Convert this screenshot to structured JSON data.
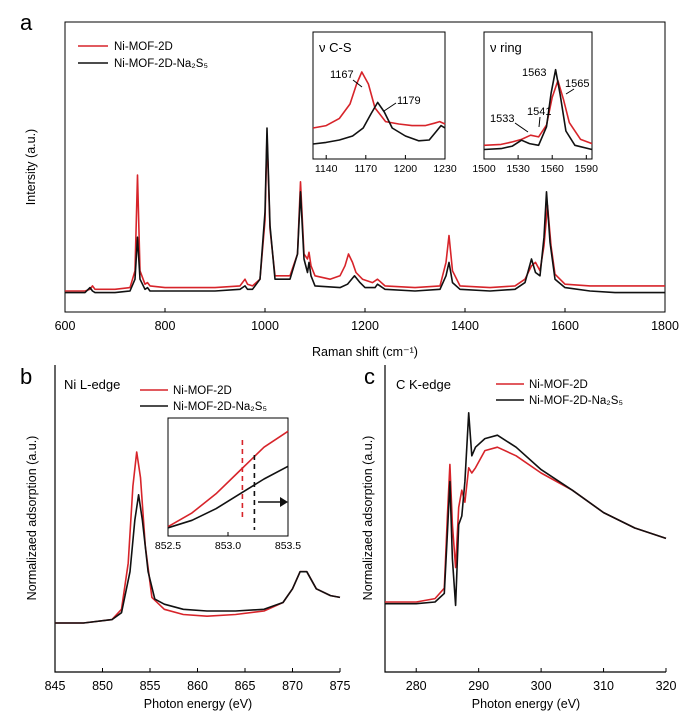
{
  "chart_data": [
    {
      "panel": "a",
      "type": "line",
      "xlabel": "Raman shift (cm⁻¹)",
      "ylabel": "Intersity (a.u.)",
      "xlim": [
        600,
        1800
      ],
      "xticks": [
        600,
        800,
        1000,
        1200,
        1400,
        1600,
        1800
      ],
      "legend": "top-left",
      "series": [
        {
          "name": "Ni-MOF-2D",
          "color": "#d7242a",
          "x": [
            600,
            640,
            650,
            655,
            660,
            700,
            730,
            740,
            745,
            750,
            760,
            765,
            770,
            800,
            900,
            950,
            960,
            965,
            975,
            990,
            1000,
            1004,
            1010,
            1020,
            1050,
            1065,
            1071,
            1078,
            1085,
            1088,
            1092,
            1100,
            1130,
            1150,
            1160,
            1167,
            1175,
            1182,
            1195,
            1215,
            1225,
            1240,
            1300,
            1350,
            1362,
            1368,
            1375,
            1390,
            1450,
            1500,
            1520,
            1533,
            1541,
            1550,
            1558,
            1565,
            1572,
            1580,
            1600,
            1650,
            1700,
            1800
          ],
          "y": [
            0.03,
            0.03,
            0.04,
            0.06,
            0.04,
            0.04,
            0.05,
            0.15,
            0.72,
            0.15,
            0.07,
            0.08,
            0.06,
            0.05,
            0.05,
            0.06,
            0.1,
            0.07,
            0.06,
            0.1,
            0.45,
            0.95,
            0.4,
            0.12,
            0.12,
            0.25,
            0.68,
            0.25,
            0.22,
            0.26,
            0.18,
            0.12,
            0.1,
            0.12,
            0.18,
            0.25,
            0.2,
            0.14,
            0.1,
            0.08,
            0.1,
            0.06,
            0.05,
            0.06,
            0.2,
            0.36,
            0.15,
            0.06,
            0.05,
            0.06,
            0.1,
            0.18,
            0.2,
            0.15,
            0.3,
            0.54,
            0.3,
            0.13,
            0.07,
            0.06,
            0.06,
            0.06
          ]
        },
        {
          "name": "Ni-MOF-2D-Na₂S₅",
          "color": "#111111",
          "x": [
            600,
            640,
            650,
            655,
            660,
            700,
            730,
            740,
            745,
            750,
            760,
            765,
            770,
            800,
            900,
            950,
            960,
            965,
            975,
            990,
            1000,
            1004,
            1010,
            1020,
            1050,
            1065,
            1071,
            1078,
            1085,
            1088,
            1092,
            1100,
            1150,
            1165,
            1179,
            1190,
            1200,
            1220,
            1225,
            1240,
            1300,
            1350,
            1362,
            1368,
            1375,
            1390,
            1450,
            1500,
            1520,
            1533,
            1541,
            1550,
            1558,
            1563,
            1570,
            1580,
            1600,
            1650,
            1700,
            1800
          ],
          "y": [
            0.02,
            0.02,
            0.05,
            0.03,
            0.02,
            0.02,
            0.03,
            0.1,
            0.35,
            0.1,
            0.04,
            0.05,
            0.03,
            0.03,
            0.03,
            0.04,
            0.06,
            0.04,
            0.04,
            0.1,
            0.5,
            1.0,
            0.42,
            0.1,
            0.1,
            0.25,
            0.62,
            0.22,
            0.14,
            0.2,
            0.12,
            0.06,
            0.05,
            0.07,
            0.12,
            0.08,
            0.05,
            0.05,
            0.07,
            0.04,
            0.03,
            0.04,
            0.12,
            0.2,
            0.08,
            0.04,
            0.03,
            0.04,
            0.08,
            0.22,
            0.14,
            0.12,
            0.35,
            0.62,
            0.32,
            0.1,
            0.05,
            0.03,
            0.02,
            0.02
          ]
        }
      ],
      "insets": [
        {
          "title": "ν C-S",
          "xlim": [
            1130,
            1230
          ],
          "xticks": [
            1140,
            1170,
            1200,
            1230
          ],
          "annotations": [
            {
              "label": "1167",
              "x": 1167
            },
            {
              "label": "1179",
              "x": 1179
            }
          ],
          "series": [
            {
              "name": "Ni-MOF-2D",
              "x": [
                1130,
                1140,
                1150,
                1158,
                1163,
                1167,
                1172,
                1177,
                1185,
                1195,
                1205,
                1215,
                1222,
                1226,
                1230
              ],
              "y": [
                0.3,
                0.33,
                0.42,
                0.6,
                0.85,
                1.0,
                0.85,
                0.55,
                0.38,
                0.35,
                0.33,
                0.33,
                0.36,
                0.38,
                0.35
              ]
            },
            {
              "name": "Ni-MOF-2D-Na₂S₅",
              "x": [
                1130,
                1140,
                1150,
                1160,
                1168,
                1174,
                1179,
                1184,
                1190,
                1200,
                1210,
                1218,
                1223,
                1227,
                1230
              ],
              "y": [
                0.1,
                0.12,
                0.15,
                0.2,
                0.3,
                0.48,
                0.62,
                0.5,
                0.3,
                0.2,
                0.14,
                0.15,
                0.25,
                0.33,
                0.3
              ]
            }
          ]
        },
        {
          "title": "ν ring",
          "xlim": [
            1500,
            1595
          ],
          "xticks": [
            1500,
            1530,
            1560,
            1590
          ],
          "annotations": [
            {
              "label": "1533",
              "x": 1533
            },
            {
              "label": "1541",
              "x": 1541
            },
            {
              "label": "1563",
              "x": 1563
            },
            {
              "label": "1565",
              "x": 1565
            }
          ],
          "series": [
            {
              "name": "Ni-MOF-2D",
              "x": [
                1500,
                1515,
                1525,
                1533,
                1541,
                1548,
                1555,
                1560,
                1565,
                1570,
                1575,
                1585,
                1595
              ],
              "y": [
                0.08,
                0.09,
                0.12,
                0.15,
                0.2,
                0.18,
                0.32,
                0.65,
                0.85,
                0.62,
                0.35,
                0.15,
                0.1
              ]
            },
            {
              "name": "Ni-MOF-2D-Na₂S₅",
              "x": [
                1500,
                1515,
                1525,
                1533,
                1540,
                1548,
                1555,
                1559,
                1563,
                1567,
                1572,
                1580,
                1595
              ],
              "y": [
                0.03,
                0.04,
                0.07,
                0.14,
                0.1,
                0.08,
                0.3,
                0.7,
                0.98,
                0.68,
                0.25,
                0.08,
                0.03
              ]
            }
          ]
        }
      ]
    },
    {
      "panel": "b",
      "type": "line",
      "title": "Ni L-edge",
      "xlabel": "Photon energy (eV)",
      "ylabel": "Normalizaed adsorption (a.u.)",
      "xlim": [
        845,
        875
      ],
      "xticks": [
        845,
        850,
        855,
        860,
        865,
        870,
        875
      ],
      "legend": "top-right",
      "series": [
        {
          "name": "Ni-MOF-2D",
          "color": "#d7242a",
          "x": [
            845,
            848,
            851,
            852,
            852.7,
            853.2,
            853.6,
            854.0,
            854.5,
            855.2,
            856.5,
            858.5,
            861,
            864,
            867,
            869,
            870,
            870.8,
            871.5,
            872.5,
            874,
            875
          ],
          "y": [
            0.0,
            0.0,
            0.02,
            0.08,
            0.35,
            0.8,
            1.0,
            0.85,
            0.45,
            0.15,
            0.08,
            0.05,
            0.04,
            0.05,
            0.07,
            0.12,
            0.2,
            0.3,
            0.3,
            0.2,
            0.16,
            0.15
          ]
        },
        {
          "name": "Ni-MOF-2D-Na₂S₅",
          "color": "#111111",
          "x": [
            845,
            848,
            851,
            852,
            852.9,
            853.4,
            853.8,
            854.2,
            854.8,
            855.5,
            856.5,
            858.5,
            861,
            864,
            867,
            869,
            870,
            870.8,
            871.5,
            872.5,
            874,
            875
          ],
          "y": [
            0.0,
            0.0,
            0.02,
            0.06,
            0.3,
            0.6,
            0.75,
            0.6,
            0.3,
            0.14,
            0.11,
            0.08,
            0.07,
            0.07,
            0.08,
            0.12,
            0.2,
            0.3,
            0.3,
            0.2,
            0.16,
            0.15
          ]
        }
      ],
      "inset": {
        "xlim": [
          852.5,
          853.5
        ],
        "xticks": [
          "852.5",
          "853.0",
          "853.5"
        ],
        "red_marker_x": 853.12,
        "black_marker_x": 853.22,
        "series": [
          {
            "name": "Ni-MOF-2D",
            "x": [
              852.5,
              852.7,
              852.9,
              853.1,
              853.3,
              853.5
            ],
            "y": [
              0.05,
              0.18,
              0.36,
              0.58,
              0.8,
              0.95
            ]
          },
          {
            "name": "Ni-MOF-2D-Na₂S₅",
            "x": [
              852.5,
              852.7,
              852.9,
              853.1,
              853.3,
              853.5
            ],
            "y": [
              0.04,
              0.11,
              0.22,
              0.36,
              0.5,
              0.62
            ]
          }
        ]
      }
    },
    {
      "panel": "c",
      "type": "line",
      "title": "C K-edge",
      "xlabel": "Photon energy (eV)",
      "ylabel": "Normalizaed adsorption (a.u.)",
      "xlim": [
        275,
        320
      ],
      "xticks": [
        280,
        290,
        300,
        310,
        320
      ],
      "legend": "top-right",
      "series": [
        {
          "name": "Ni-MOF-2D",
          "color": "#d7242a",
          "x": [
            275,
            280,
            283,
            284.5,
            285.0,
            285.4,
            285.8,
            286.3,
            286.8,
            287.3,
            287.8,
            288.4,
            288.9,
            289.5,
            291,
            293,
            296,
            300,
            305,
            310,
            315,
            320
          ],
          "y": [
            0.0,
            0.0,
            0.02,
            0.08,
            0.5,
            0.8,
            0.45,
            0.2,
            0.55,
            0.65,
            0.58,
            0.78,
            0.75,
            0.78,
            0.88,
            0.9,
            0.85,
            0.75,
            0.65,
            0.52,
            0.43,
            0.37
          ]
        },
        {
          "name": "Ni-MOF-2D-Na₂S₅",
          "color": "#111111",
          "x": [
            275,
            280,
            283,
            284.5,
            285.0,
            285.4,
            285.8,
            286.3,
            286.8,
            287.3,
            287.8,
            288.4,
            288.9,
            289.5,
            291,
            293,
            296,
            300,
            305,
            310,
            315,
            320
          ],
          "y": [
            -0.01,
            -0.01,
            0.0,
            0.05,
            0.4,
            0.7,
            0.25,
            -0.02,
            0.45,
            0.5,
            0.7,
            1.1,
            0.85,
            0.9,
            0.95,
            0.97,
            0.9,
            0.77,
            0.65,
            0.52,
            0.43,
            0.37
          ]
        }
      ]
    }
  ]
}
